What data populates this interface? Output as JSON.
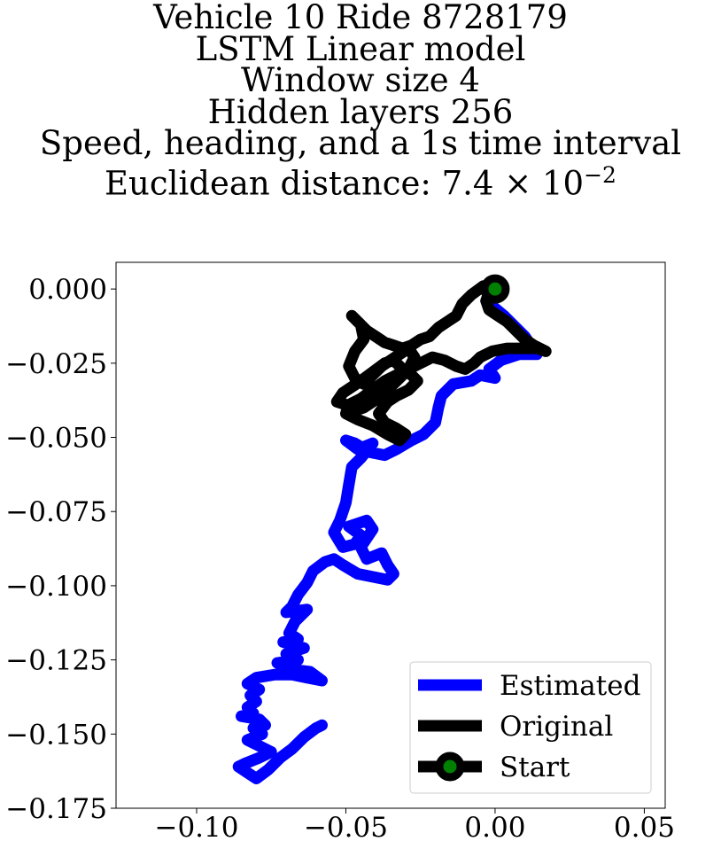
{
  "chart_data": {
    "type": "line",
    "title_lines": [
      "Vehicle 10 Ride 8728179",
      "LSTM Linear model",
      "Window size 4",
      "Hidden layers 256",
      "Speed, heading, and a 1s time interval"
    ],
    "title_metric_prefix": "Euclidean distance: 7.4 × 10",
    "title_metric_exponent": "−2",
    "xlim": [
      -0.127,
      0.057
    ],
    "ylim": [
      -0.175,
      0.009
    ],
    "xticks": [
      -0.1,
      -0.05,
      0.0,
      0.05
    ],
    "xtick_labels": [
      "−0.10",
      "−0.05",
      "0.00",
      "0.05"
    ],
    "yticks": [
      0.0,
      -0.025,
      -0.05,
      -0.075,
      -0.1,
      -0.125,
      -0.15,
      -0.175
    ],
    "ytick_labels": [
      "0.000",
      "−0.025",
      "−0.050",
      "−0.075",
      "−0.100",
      "−0.125",
      "−0.150",
      "−0.175"
    ],
    "legend_position": "lower-right",
    "series": [
      {
        "name": "Estimated",
        "color": "#0000ff",
        "points": [
          [
            0.0,
            0.0
          ],
          [
            -0.003,
            -0.004
          ],
          [
            0.003,
            -0.009
          ],
          [
            0.01,
            -0.016
          ],
          [
            0.014,
            -0.022
          ],
          [
            0.008,
            -0.022
          ],
          [
            0.002,
            -0.024
          ],
          [
            -0.002,
            -0.027
          ],
          [
            0.0,
            -0.03
          ],
          [
            -0.005,
            -0.029
          ],
          [
            -0.008,
            -0.031
          ],
          [
            -0.014,
            -0.032
          ],
          [
            -0.018,
            -0.036
          ],
          [
            -0.019,
            -0.04
          ],
          [
            -0.02,
            -0.045
          ],
          [
            -0.024,
            -0.049
          ],
          [
            -0.028,
            -0.051
          ],
          [
            -0.033,
            -0.054
          ],
          [
            -0.037,
            -0.056
          ],
          [
            -0.042,
            -0.055
          ],
          [
            -0.047,
            -0.052
          ],
          [
            -0.05,
            -0.051
          ],
          [
            -0.046,
            -0.054
          ],
          [
            -0.041,
            -0.052
          ],
          [
            -0.045,
            -0.057
          ],
          [
            -0.048,
            -0.06
          ],
          [
            -0.049,
            -0.066
          ],
          [
            -0.05,
            -0.072
          ],
          [
            -0.052,
            -0.078
          ],
          [
            -0.054,
            -0.082
          ],
          [
            -0.051,
            -0.087
          ],
          [
            -0.047,
            -0.086
          ],
          [
            -0.045,
            -0.083
          ],
          [
            -0.049,
            -0.08
          ],
          [
            -0.043,
            -0.078
          ],
          [
            -0.041,
            -0.081
          ],
          [
            -0.045,
            -0.087
          ],
          [
            -0.043,
            -0.091
          ],
          [
            -0.038,
            -0.089
          ],
          [
            -0.036,
            -0.093
          ],
          [
            -0.034,
            -0.096
          ],
          [
            -0.036,
            -0.098
          ],
          [
            -0.041,
            -0.097
          ],
          [
            -0.046,
            -0.096
          ],
          [
            -0.051,
            -0.093
          ],
          [
            -0.054,
            -0.091
          ],
          [
            -0.057,
            -0.092
          ],
          [
            -0.061,
            -0.095
          ],
          [
            -0.063,
            -0.099
          ],
          [
            -0.066,
            -0.103
          ],
          [
            -0.068,
            -0.107
          ],
          [
            -0.07,
            -0.109
          ],
          [
            -0.063,
            -0.108
          ],
          [
            -0.067,
            -0.112
          ],
          [
            -0.069,
            -0.116
          ],
          [
            -0.066,
            -0.118
          ],
          [
            -0.071,
            -0.119
          ],
          [
            -0.064,
            -0.121
          ],
          [
            -0.07,
            -0.123
          ],
          [
            -0.066,
            -0.125
          ],
          [
            -0.073,
            -0.126
          ],
          [
            -0.07,
            -0.128
          ],
          [
            -0.062,
            -0.129
          ],
          [
            -0.058,
            -0.132
          ],
          [
            -0.063,
            -0.131
          ],
          [
            -0.068,
            -0.13
          ],
          [
            -0.074,
            -0.13
          ],
          [
            -0.08,
            -0.131
          ],
          [
            -0.083,
            -0.133
          ],
          [
            -0.079,
            -0.135
          ],
          [
            -0.082,
            -0.137
          ],
          [
            -0.08,
            -0.139
          ],
          [
            -0.083,
            -0.141
          ],
          [
            -0.081,
            -0.143
          ],
          [
            -0.085,
            -0.144
          ],
          [
            -0.079,
            -0.145
          ],
          [
            -0.077,
            -0.147
          ],
          [
            -0.081,
            -0.148
          ],
          [
            -0.078,
            -0.15
          ],
          [
            -0.083,
            -0.152
          ],
          [
            -0.079,
            -0.154
          ],
          [
            -0.075,
            -0.156
          ],
          [
            -0.079,
            -0.158
          ],
          [
            -0.084,
            -0.16
          ],
          [
            -0.086,
            -0.161
          ],
          [
            -0.083,
            -0.163
          ],
          [
            -0.08,
            -0.165
          ],
          [
            -0.076,
            -0.162
          ],
          [
            -0.072,
            -0.158
          ],
          [
            -0.068,
            -0.155
          ],
          [
            -0.064,
            -0.151
          ],
          [
            -0.06,
            -0.148
          ],
          [
            -0.058,
            -0.147
          ]
        ]
      },
      {
        "name": "Original",
        "color": "#000000",
        "points": [
          [
            0.0,
            0.0
          ],
          [
            -0.004,
            0.001
          ],
          [
            -0.008,
            -0.002
          ],
          [
            -0.011,
            -0.005
          ],
          [
            -0.013,
            -0.009
          ],
          [
            -0.016,
            -0.011
          ],
          [
            -0.019,
            -0.013
          ],
          [
            -0.022,
            -0.016
          ],
          [
            -0.025,
            -0.017
          ],
          [
            -0.028,
            -0.019
          ],
          [
            -0.031,
            -0.02
          ],
          [
            -0.034,
            -0.019
          ],
          [
            -0.037,
            -0.018
          ],
          [
            -0.04,
            -0.016
          ],
          [
            -0.043,
            -0.014
          ],
          [
            -0.046,
            -0.011
          ],
          [
            -0.048,
            -0.009
          ],
          [
            -0.045,
            -0.012
          ],
          [
            -0.044,
            -0.017
          ],
          [
            -0.047,
            -0.021
          ],
          [
            -0.049,
            -0.026
          ],
          [
            -0.047,
            -0.03
          ],
          [
            -0.044,
            -0.032
          ],
          [
            -0.041,
            -0.029
          ],
          [
            -0.038,
            -0.026
          ],
          [
            -0.035,
            -0.024
          ],
          [
            -0.032,
            -0.022
          ],
          [
            -0.029,
            -0.02
          ],
          [
            -0.027,
            -0.023
          ],
          [
            -0.029,
            -0.027
          ],
          [
            -0.032,
            -0.03
          ],
          [
            -0.035,
            -0.033
          ],
          [
            -0.038,
            -0.036
          ],
          [
            -0.041,
            -0.038
          ],
          [
            -0.044,
            -0.04
          ],
          [
            -0.047,
            -0.041
          ],
          [
            -0.05,
            -0.039
          ],
          [
            -0.053,
            -0.038
          ],
          [
            -0.051,
            -0.035
          ],
          [
            -0.048,
            -0.033
          ],
          [
            -0.045,
            -0.031
          ],
          [
            -0.041,
            -0.028
          ],
          [
            -0.037,
            -0.025
          ],
          [
            -0.034,
            -0.024
          ],
          [
            -0.031,
            -0.027
          ],
          [
            -0.028,
            -0.029
          ],
          [
            -0.026,
            -0.031
          ],
          [
            -0.029,
            -0.034
          ],
          [
            -0.033,
            -0.036
          ],
          [
            -0.036,
            -0.038
          ],
          [
            -0.039,
            -0.042
          ],
          [
            -0.037,
            -0.045
          ],
          [
            -0.033,
            -0.047
          ],
          [
            -0.03,
            -0.049
          ],
          [
            -0.032,
            -0.051
          ],
          [
            -0.036,
            -0.049
          ],
          [
            -0.041,
            -0.046
          ],
          [
            -0.046,
            -0.044
          ],
          [
            -0.05,
            -0.042
          ],
          [
            -0.049,
            -0.039
          ],
          [
            -0.045,
            -0.037
          ],
          [
            -0.041,
            -0.034
          ],
          [
            -0.037,
            -0.031
          ],
          [
            -0.033,
            -0.029
          ],
          [
            -0.029,
            -0.027
          ],
          [
            -0.025,
            -0.025
          ],
          [
            -0.021,
            -0.023
          ],
          [
            -0.017,
            -0.024
          ],
          [
            -0.013,
            -0.026
          ],
          [
            -0.01,
            -0.027
          ],
          [
            -0.007,
            -0.025
          ],
          [
            -0.005,
            -0.023
          ],
          [
            -0.001,
            -0.021
          ],
          [
            0.004,
            -0.02
          ],
          [
            0.009,
            -0.02
          ],
          [
            0.014,
            -0.02
          ],
          [
            0.017,
            -0.021
          ],
          [
            0.013,
            -0.019
          ],
          [
            0.01,
            -0.017
          ],
          [
            0.007,
            -0.014
          ],
          [
            0.004,
            -0.011
          ],
          [
            0.001,
            -0.009
          ],
          [
            -0.002,
            -0.007
          ],
          [
            -0.003,
            -0.004
          ],
          [
            -0.002,
            -0.001
          ],
          [
            0.0,
            0.0
          ]
        ]
      }
    ],
    "start_point": {
      "name": "Start",
      "x": 0.0,
      "y": 0.0,
      "edge_color": "#000000",
      "face_color": "#008000"
    }
  }
}
